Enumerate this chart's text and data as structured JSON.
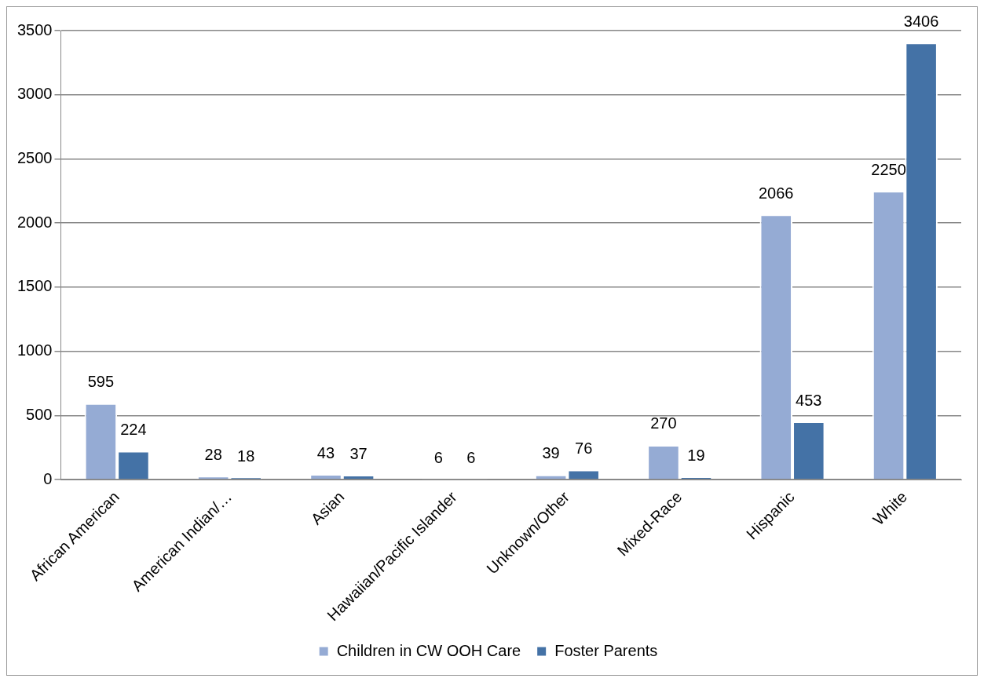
{
  "chart_data": {
    "type": "bar",
    "categories": [
      "African American",
      "American Indian/…",
      "Asian",
      "Hawaiian/Pacific Islander",
      "Unknown/Other",
      "Mixed-Race",
      "Hispanic",
      "White"
    ],
    "series": [
      {
        "name": "Children in CW OOH Care",
        "color": "#95abd4",
        "values": [
          595,
          28,
          43,
          6,
          39,
          270,
          2066,
          2250
        ]
      },
      {
        "name": "Foster Parents",
        "color": "#4472a6",
        "values": [
          224,
          18,
          37,
          6,
          76,
          19,
          453,
          3406
        ]
      }
    ],
    "ylim": [
      0,
      3500
    ],
    "yticks": [
      0,
      500,
      1000,
      1500,
      2000,
      2500,
      3000,
      3500
    ],
    "grid": "y",
    "legend": "bottom",
    "data_labels": true
  }
}
